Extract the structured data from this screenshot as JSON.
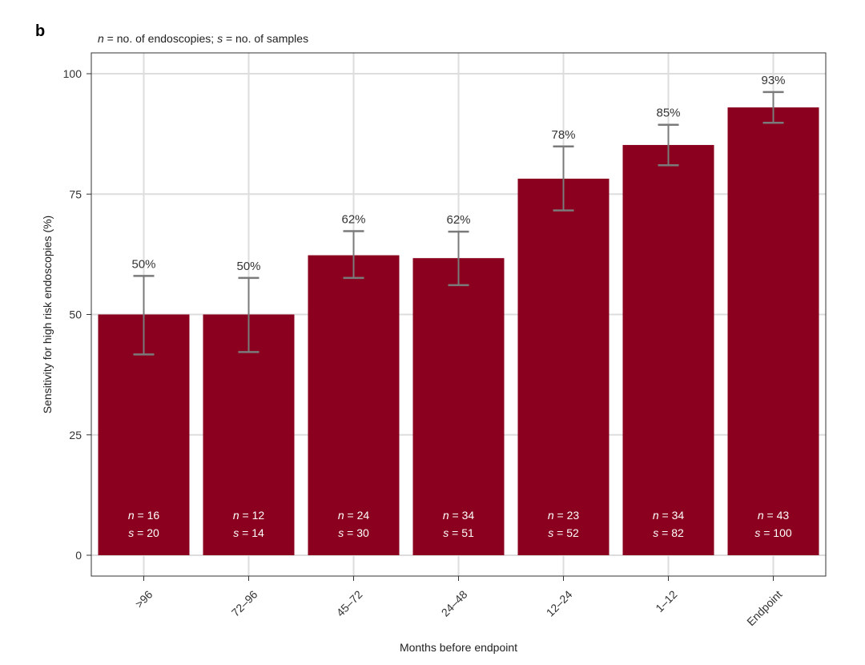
{
  "panel_label": "b",
  "note": {
    "n_symbol": "n",
    "n_text": " = no. of endoscopies; ",
    "s_symbol": "s",
    "s_text": " = no. of samples"
  },
  "chart_data": {
    "type": "bar",
    "xlabel": "Months before endpoint",
    "ylabel": "Sensitivity for high risk endoscopies (%)",
    "ylim": [
      0,
      105
    ],
    "yticks": [
      0,
      25,
      50,
      75,
      100
    ],
    "grid": true,
    "colors": {
      "bar": "#8B001E",
      "error_bar": "#7a7a7a",
      "grid": "#dddddd"
    },
    "categories": [
      ">96",
      "72–96",
      "45–72",
      "24–48",
      "12–24",
      "1–12",
      "Endpoint"
    ],
    "values": [
      50,
      50,
      62.3,
      61.7,
      78.2,
      85.2,
      93
    ],
    "error_low": [
      41.7,
      42.2,
      57.6,
      56.1,
      71.6,
      81,
      89.8
    ],
    "error_high": [
      58,
      57.6,
      67.3,
      67.2,
      84.9,
      89.4,
      96.2
    ],
    "value_labels": [
      "50%",
      "50%",
      "62%",
      "62%",
      "78%",
      "85%",
      "93%"
    ],
    "n": [
      "16",
      "12",
      "24",
      "34",
      "23",
      "34",
      "43"
    ],
    "s": [
      "20",
      "14",
      "30",
      "51",
      "52",
      "82",
      "100"
    ],
    "n_symbol": "n",
    "s_symbol": "s"
  }
}
